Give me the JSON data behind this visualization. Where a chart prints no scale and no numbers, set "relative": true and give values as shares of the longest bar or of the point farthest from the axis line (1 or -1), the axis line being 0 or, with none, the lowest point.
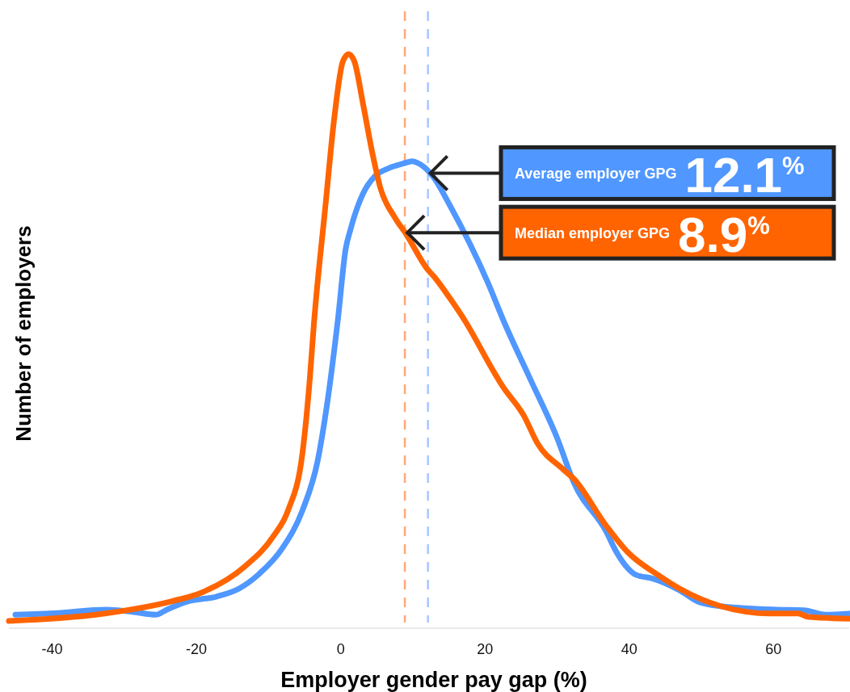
{
  "chart_data": {
    "type": "line",
    "xlabel": "Employer gender pay gap (%)",
    "ylabel": "Number of employers",
    "relative": true,
    "xlim": [
      -46,
      70.5
    ],
    "xticks": [
      -40,
      -20,
      0,
      20,
      40,
      60
    ],
    "tick_labels": "x",
    "line_style": "solid",
    "series": [
      {
        "color": "#5097ff",
        "x": [
          -45.1,
          -39.3,
          -32.5,
          -28.9,
          -25.6,
          -24.1,
          -21.3,
          -17.2,
          -14.1,
          -11.3,
          -8.1,
          -5.3,
          -3.2,
          -1.7,
          -0.4,
          0.7,
          1.3,
          3.1,
          4.7,
          6.7,
          8.7,
          9.9,
          11.1,
          12.8,
          15.1,
          20.4,
          22.7,
          26.2,
          30.0,
          32.3,
          36.8,
          38.3,
          41.0,
          43.2,
          47.0,
          49.7,
          52.7,
          60.4,
          64.2,
          67.2,
          70.5
        ],
        "values": [
          0.011,
          0.014,
          0.02,
          0.016,
          0.011,
          0.02,
          0.034,
          0.043,
          0.057,
          0.083,
          0.128,
          0.195,
          0.282,
          0.399,
          0.53,
          0.657,
          0.688,
          0.754,
          0.784,
          0.799,
          0.807,
          0.811,
          0.805,
          0.784,
          0.734,
          0.597,
          0.526,
          0.429,
          0.323,
          0.245,
          0.158,
          0.12,
          0.081,
          0.075,
          0.054,
          0.033,
          0.026,
          0.02,
          0.019,
          0.011,
          0.013
        ]
      },
      {
        "color": "#ff6400",
        "x": [
          -46,
          -33.3,
          -23.3,
          -19.3,
          -13.3,
          -9.3,
          -7.3,
          -5.3,
          -4.3,
          -3.7,
          -2.1,
          -0.9,
          0.3,
          1.1,
          1.9,
          3.1,
          4.4,
          5.5,
          7.5,
          9.1,
          12.0,
          13.1,
          15.1,
          17.4,
          20.8,
          22.4,
          25.4,
          27.3,
          30.7,
          32.3,
          36.8,
          39.9,
          44.0,
          47.0,
          52.7,
          59.6,
          63.4,
          64.9,
          70.5
        ],
        "values": [
          0,
          0.012,
          0.035,
          0.05,
          0.096,
          0.15,
          0.195,
          0.296,
          0.424,
          0.526,
          0.734,
          0.886,
          0.987,
          1,
          0.987,
          0.912,
          0.825,
          0.764,
          0.712,
          0.682,
          0.621,
          0.605,
          0.57,
          0.526,
          0.449,
          0.415,
          0.362,
          0.313,
          0.269,
          0.251,
          0.168,
          0.12,
          0.081,
          0.057,
          0.026,
          0.013,
          0.013,
          0.007,
          0.004
        ]
      }
    ],
    "ref_lines": [
      {
        "axis": "x",
        "value": 12.1,
        "color": "#a8c8ff",
        "line_style": "dashed"
      },
      {
        "axis": "x",
        "value": 8.9,
        "color": "#ffa878",
        "line_style": "dashed"
      }
    ],
    "annotations": [
      {
        "text": "Average employer GPG 12.1$^{%}$",
        "x": 12.1,
        "y": 0.79
      },
      {
        "text": "Median employer GPG 8.9$^{%}$",
        "x": 8.9,
        "y": 0.685
      }
    ]
  }
}
